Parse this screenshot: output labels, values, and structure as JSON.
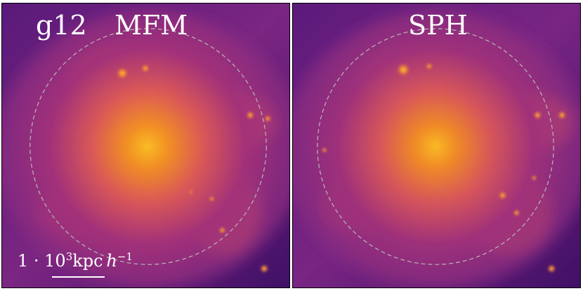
{
  "labels": {
    "simulation": "g12",
    "left_method": "MFM",
    "right_method": "SPH"
  },
  "scale_bar": {
    "prefix": "1 · 10",
    "exponent": "3",
    "unit": "kpc",
    "h": "h",
    "h_exponent": "−1"
  },
  "colors": {
    "background": "#3a0f63",
    "mid": "#b63c78",
    "core": "#ffb21e",
    "circle": "#b8b8b8"
  }
}
